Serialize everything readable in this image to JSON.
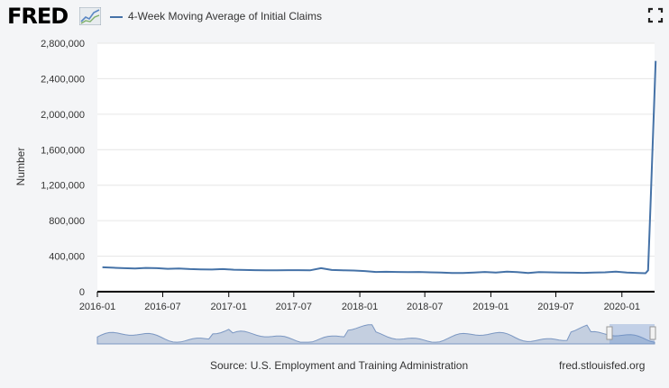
{
  "header": {
    "logo_text": "FRED",
    "legend_label": "4-Week Moving Average of Initial Claims",
    "series_color": "#4572a7",
    "fullscreen_icon": "fullscreen-icon"
  },
  "footer": {
    "source": "Source: U.S. Employment and Training Administration",
    "site": "fred.stlouisfed.org"
  },
  "chart_data": {
    "type": "line",
    "ylabel": "Number",
    "ylim": [
      0,
      2800000
    ],
    "yticks": [
      0,
      400000,
      800000,
      1200000,
      1600000,
      2000000,
      2400000,
      2800000
    ],
    "ytick_labels": [
      "0",
      "400,000",
      "800,000",
      "1,200,000",
      "1,600,000",
      "2,000,000",
      "2,400,000",
      "2,800,000"
    ],
    "xlim": [
      "2016-01",
      "2020-04"
    ],
    "xticks": [
      "2016-01",
      "2016-07",
      "2017-01",
      "2017-07",
      "2018-01",
      "2018-07",
      "2019-01",
      "2019-07",
      "2020-01"
    ],
    "grid": true,
    "series": [
      {
        "name": "4-Week Moving Average of Initial Claims",
        "color": "#4572a7",
        "x": [
          "2016-01",
          "2016-02",
          "2016-03",
          "2016-04",
          "2016-05",
          "2016-06",
          "2016-07",
          "2016-08",
          "2016-09",
          "2016-10",
          "2016-11",
          "2016-12",
          "2017-01",
          "2017-02",
          "2017-03",
          "2017-04",
          "2017-05",
          "2017-06",
          "2017-07",
          "2017-08",
          "2017-09",
          "2017-10",
          "2017-11",
          "2017-12",
          "2018-01",
          "2018-02",
          "2018-03",
          "2018-04",
          "2018-05",
          "2018-06",
          "2018-07",
          "2018-08",
          "2018-09",
          "2018-10",
          "2018-11",
          "2018-12",
          "2019-01",
          "2019-02",
          "2019-03",
          "2019-04",
          "2019-05",
          "2019-06",
          "2019-07",
          "2019-08",
          "2019-09",
          "2019-10",
          "2019-11",
          "2019-12",
          "2020-01",
          "2020-02",
          "2020-03-07",
          "2020-03-14",
          "2020-03-21",
          "2020-03-28",
          "2020-04-04"
        ],
        "values": [
          275000,
          270000,
          265000,
          262000,
          268000,
          265000,
          258000,
          262000,
          255000,
          252000,
          250000,
          255000,
          248000,
          245000,
          242000,
          240000,
          240000,
          242000,
          242000,
          240000,
          265000,
          245000,
          240000,
          238000,
          232000,
          222000,
          224000,
          222000,
          220000,
          222000,
          218000,
          216000,
          210000,
          210000,
          215000,
          222000,
          216000,
          225000,
          220000,
          210000,
          220000,
          218000,
          215000,
          214000,
          212000,
          215000,
          218000,
          225000,
          215000,
          210000,
          208000,
          240000,
          1000000,
          1800000,
          2600000
        ]
      }
    ]
  }
}
